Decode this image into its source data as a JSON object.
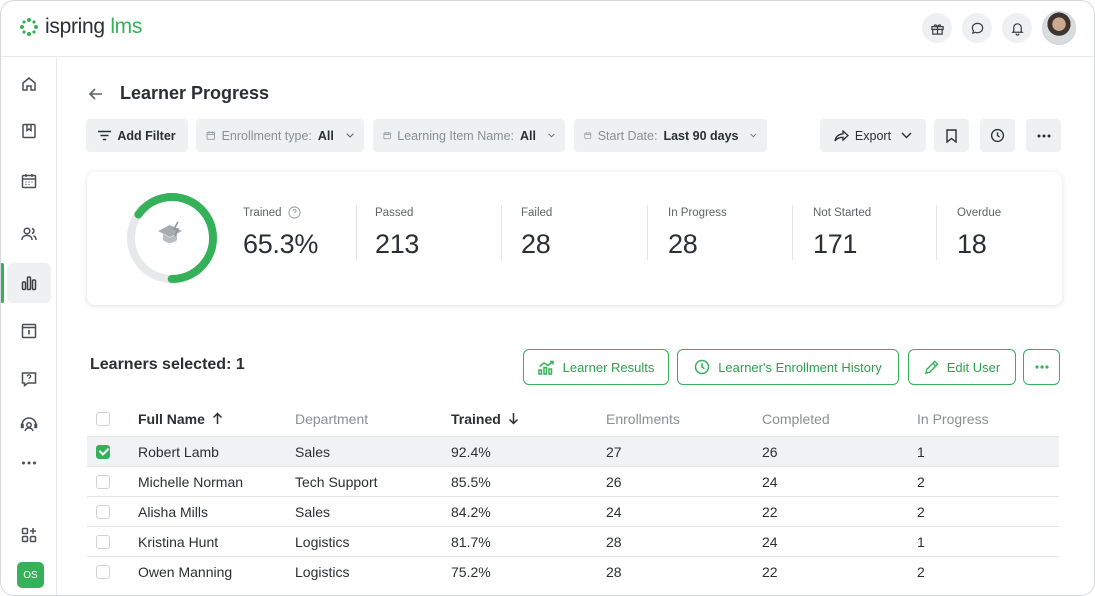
{
  "app": {
    "logo_main": "ispring",
    "logo_accent": "lms",
    "user_initials": "OS"
  },
  "colors": {
    "accent": "#35b15a",
    "muted_bg": "#eef0f1",
    "text": "#2b2f33"
  },
  "topbar": {
    "icons": [
      "gift-icon",
      "chat-icon",
      "bell-icon"
    ]
  },
  "sidebar": {
    "items": [
      {
        "icon": "home-icon"
      },
      {
        "icon": "book-icon"
      },
      {
        "icon": "calendar-icon"
      },
      {
        "icon": "users-icon"
      },
      {
        "icon": "reports-icon",
        "active": true
      },
      {
        "icon": "info-board-icon"
      },
      {
        "icon": "help-icon"
      },
      {
        "icon": "support-icon"
      },
      {
        "icon": "more-icon"
      },
      {
        "icon": "add-widget-icon"
      }
    ]
  },
  "page": {
    "title": "Learner Progress"
  },
  "filters": {
    "add_filter": "Add Filter",
    "enrollment_type": {
      "label": "Enrollment type:",
      "value": "All"
    },
    "learning_item": {
      "label": "Learning Item Name:",
      "value": "All"
    },
    "start_date": {
      "label": "Start Date:",
      "value": "Last 90 days"
    },
    "export": "Export"
  },
  "stats": {
    "trained": {
      "label": "Trained",
      "value": "65.3%",
      "fraction": 0.653
    },
    "passed": {
      "label": "Passed",
      "value": "213"
    },
    "failed": {
      "label": "Failed",
      "value": "28"
    },
    "in_progress": {
      "label": "In Progress",
      "value": "28"
    },
    "not_started": {
      "label": "Not Started",
      "value": "171"
    },
    "overdue": {
      "label": "Overdue",
      "value": "18"
    }
  },
  "actions": {
    "selected_text": "Learners selected: 1",
    "learner_results": "Learner Results",
    "enrollment_history": "Learner's Enrollment History",
    "edit_user": "Edit User"
  },
  "table": {
    "headers": {
      "full_name": "Full Name",
      "department": "Department",
      "trained": "Trained",
      "enrollments": "Enrollments",
      "completed": "Completed",
      "in_progress": "In Progress"
    },
    "rows": [
      {
        "checked": true,
        "name": "Robert Lamb",
        "department": "Sales",
        "trained": "92.4%",
        "enrollments": "27",
        "completed": "26",
        "in_progress": "1"
      },
      {
        "checked": false,
        "name": "Michelle Norman",
        "department": "Tech Support",
        "trained": "85.5%",
        "enrollments": "26",
        "completed": "24",
        "in_progress": "2"
      },
      {
        "checked": false,
        "name": "Alisha Mills",
        "department": "Sales",
        "trained": "84.2%",
        "enrollments": "24",
        "completed": "22",
        "in_progress": "2"
      },
      {
        "checked": false,
        "name": "Kristina Hunt",
        "department": "Logistics",
        "trained": "81.7%",
        "enrollments": "28",
        "completed": "24",
        "in_progress": "1"
      },
      {
        "checked": false,
        "name": "Owen Manning",
        "department": "Logistics",
        "trained": "75.2%",
        "enrollments": "28",
        "completed": "22",
        "in_progress": "2"
      }
    ]
  }
}
